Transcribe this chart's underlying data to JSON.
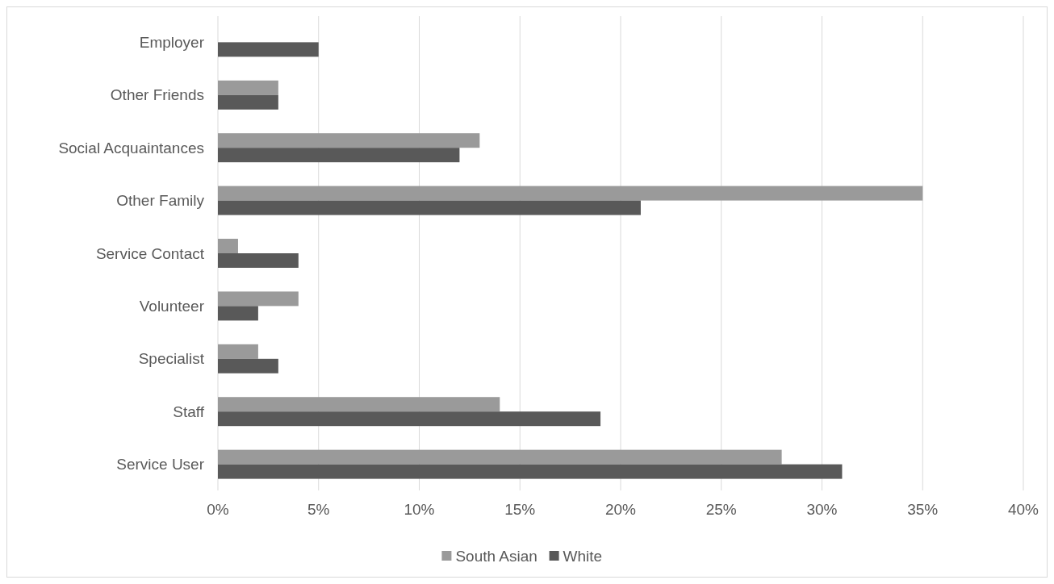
{
  "chart_data": {
    "type": "bar",
    "orientation": "horizontal",
    "categories": [
      "Employer",
      "Other Friends",
      "Social Acquaintances",
      "Other Family",
      "Service Contact",
      "Volunteer",
      "Specialist",
      "Staff",
      "Service User"
    ],
    "series": [
      {
        "name": "South Asian",
        "color": "#9a9a9a",
        "values": [
          0,
          3,
          13,
          35,
          1,
          4,
          2,
          14,
          28
        ]
      },
      {
        "name": "White",
        "color": "#595959",
        "values": [
          5,
          3,
          12,
          21,
          4,
          2,
          3,
          19,
          31
        ]
      }
    ],
    "xlim": [
      0,
      40
    ],
    "xticks": [
      {
        "value": 0,
        "label": "0%"
      },
      {
        "value": 5,
        "label": "5%"
      },
      {
        "value": 10,
        "label": "10%"
      },
      {
        "value": 15,
        "label": "15%"
      },
      {
        "value": 20,
        "label": "20%"
      },
      {
        "value": 25,
        "label": "25%"
      },
      {
        "value": 30,
        "label": "30%"
      },
      {
        "value": 35,
        "label": "35%"
      },
      {
        "value": 40,
        "label": "40%"
      }
    ],
    "grid": "x",
    "legend": "bottom"
  }
}
